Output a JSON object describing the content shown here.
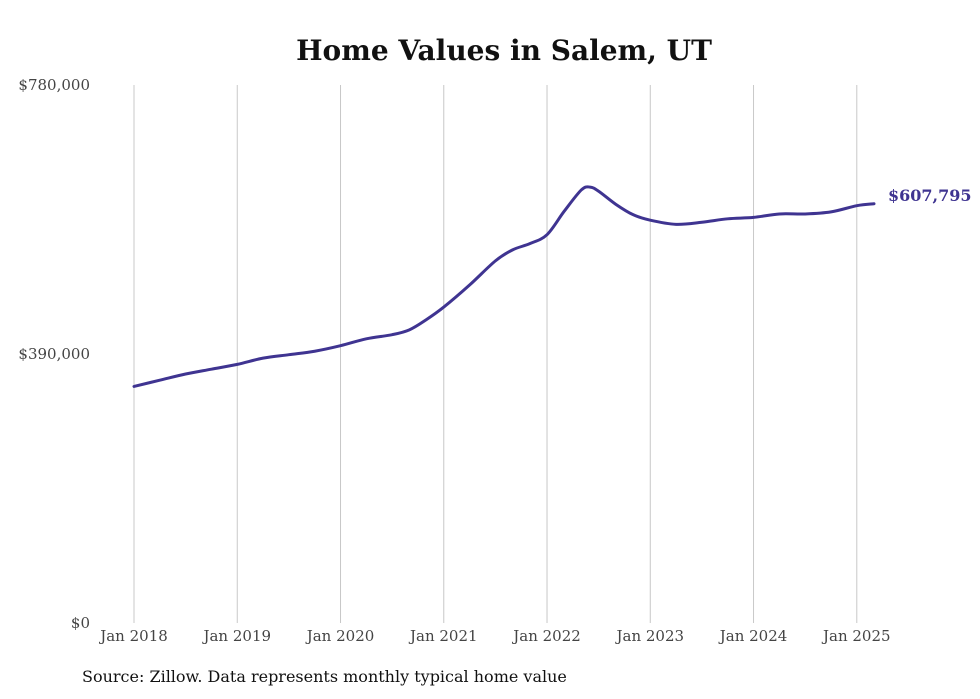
{
  "chart_data": {
    "type": "line",
    "title": "Home Values in Salem, UT",
    "subtitle": "",
    "xlabel": "",
    "ylabel": "",
    "y_ticks": [
      "$780,000",
      "$390,000",
      "$0"
    ],
    "y_tick_values": [
      780000,
      390000,
      0
    ],
    "ylim": [
      0,
      780000
    ],
    "x_ticks": [
      "Jan 2018",
      "Jan 2019",
      "Jan 2020",
      "Jan 2021",
      "Jan 2022",
      "Jan 2023",
      "Jan 2024",
      "Jan 2025"
    ],
    "x_tick_values": [
      "2018-01",
      "2019-01",
      "2020-01",
      "2021-01",
      "2022-01",
      "2023-01",
      "2024-01",
      "2025-01"
    ],
    "xlim": [
      "2018-01",
      "2025-03"
    ],
    "grid": "vertical",
    "line_color": "#3f3491",
    "end_label": "$607,795",
    "series": [
      {
        "name": "",
        "x": [
          "2018-01",
          "2018-04",
          "2018-07",
          "2018-10",
          "2019-01",
          "2019-04",
          "2019-07",
          "2019-10",
          "2020-01",
          "2020-04",
          "2020-07",
          "2020-09",
          "2020-11",
          "2021-01",
          "2021-04",
          "2021-07",
          "2021-09",
          "2021-11",
          "2022-01",
          "2022-03",
          "2022-05",
          "2022-06",
          "2022-07",
          "2022-09",
          "2022-11",
          "2023-01",
          "2023-04",
          "2023-07",
          "2023-10",
          "2024-01",
          "2024-04",
          "2024-07",
          "2024-10",
          "2025-01",
          "2025-03"
        ],
        "values": [
          343000,
          352000,
          361000,
          368000,
          375000,
          384000,
          389000,
          394000,
          402000,
          412000,
          418000,
          425000,
          440000,
          458000,
          490000,
          525000,
          541000,
          550000,
          563000,
          597000,
          628000,
          632000,
          626000,
          607000,
          592000,
          584000,
          578000,
          581000,
          586000,
          588000,
          593000,
          593000,
          596000,
          605000,
          607795
        ]
      }
    ]
  },
  "source_text": "Source: Zillow. Data represents monthly typical home value"
}
